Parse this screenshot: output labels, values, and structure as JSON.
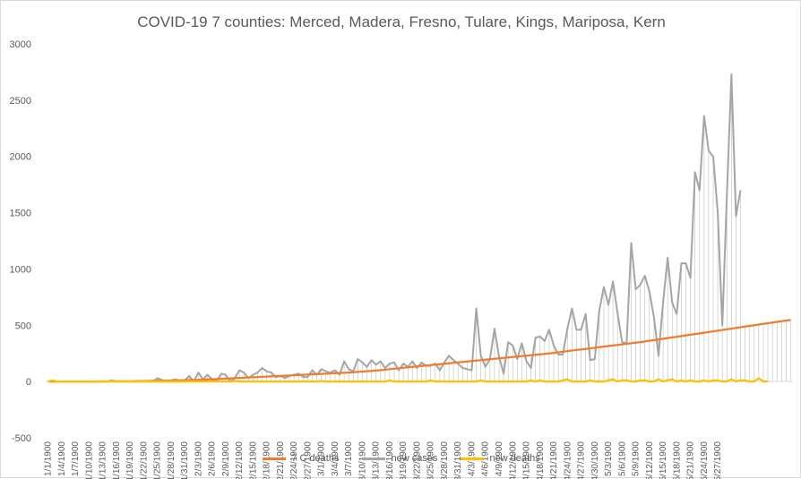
{
  "chart_data": {
    "type": "line",
    "title": "COVID-19 7 counties:  Merced,  Madera, Fresno, Tulare, Kings, Mariposa, Kern",
    "xlabel": "",
    "ylabel": "",
    "ylim": [
      -500,
      3000
    ],
    "yticks": [
      "3000",
      "2500",
      "2000",
      "1500",
      "1000",
      "500",
      "0",
      "-500"
    ],
    "x_tick_labels": [
      "1/1/1900",
      "1/4/1900",
      "1/7/1900",
      "1/10/1900",
      "1/13/1900",
      "1/16/1900",
      "1/19/1900",
      "1/22/1900",
      "1/25/1900",
      "1/28/1900",
      "1/31/1900",
      "2/3/1900",
      "2/6/1900",
      "2/9/1900",
      "2/12/1900",
      "2/15/1900",
      "2/18/1900",
      "2/21/1900",
      "2/24/1900",
      "2/27/1900",
      "3/1/1900",
      "3/4/1900",
      "3/7/1900",
      "3/10/1900",
      "3/13/1900",
      "3/16/1900",
      "3/19/1900",
      "3/22/1900",
      "3/25/1900",
      "3/28/1900",
      "3/31/1900",
      "4/3/1900",
      "4/6/1900",
      "4/9/1900",
      "4/12/1900",
      "4/15/1900",
      "4/18/1900",
      "4/21/1900",
      "4/24/1900",
      "4/27/1900",
      "4/30/1900",
      "5/3/1900",
      "5/6/1900",
      "5/9/1900",
      "5/12/1900",
      "5/15/1900",
      "5/18/1900",
      "5/21/1900",
      "5/24/1900",
      "5/27/1900"
    ],
    "grid": false,
    "drop_lines": true,
    "legend_position": "bottom",
    "series": [
      {
        "name": "7 C deaths",
        "color": "#ED7D31",
        "values": [
          0,
          0,
          0,
          0,
          0,
          0,
          0,
          0,
          0,
          0,
          0,
          1,
          1,
          1,
          2,
          2,
          2,
          2,
          2,
          3,
          4,
          4,
          5,
          6,
          7,
          8,
          8,
          9,
          10,
          11,
          12,
          13,
          14,
          15,
          17,
          19,
          20,
          22,
          24,
          26,
          28,
          30,
          32,
          34,
          37,
          38,
          40,
          42,
          44,
          46,
          48,
          50,
          52,
          54,
          56,
          58,
          60,
          62,
          64,
          66,
          68,
          70,
          72,
          74,
          76,
          78,
          80,
          83,
          86,
          89,
          92,
          95,
          98,
          102,
          106,
          110,
          114,
          118,
          122,
          126,
          130,
          134,
          138,
          142,
          146,
          150,
          154,
          158,
          162,
          166,
          170,
          174,
          178,
          182,
          186,
          190,
          194,
          198,
          202,
          206,
          210,
          214,
          218,
          222,
          226,
          230,
          234,
          238,
          242,
          246,
          250,
          255,
          260,
          265,
          270,
          275,
          280,
          285,
          290,
          295,
          300,
          305,
          310,
          315,
          320,
          325,
          330,
          335,
          340,
          345,
          350,
          356,
          362,
          368,
          374,
          380,
          386,
          392,
          398,
          404,
          410,
          416,
          422,
          428,
          434,
          440,
          446,
          452,
          458,
          464,
          470,
          476,
          482,
          488,
          494,
          500,
          506,
          512,
          518,
          524,
          530,
          536,
          542,
          548
        ]
      },
      {
        "name": "new cases",
        "color": "#A5A5A5",
        "values": [
          0,
          0,
          0,
          0,
          0,
          0,
          0,
          0,
          0,
          0,
          0,
          0,
          0,
          0,
          10,
          0,
          0,
          0,
          0,
          0,
          0,
          5,
          0,
          0,
          30,
          15,
          0,
          10,
          20,
          0,
          10,
          50,
          0,
          80,
          20,
          60,
          20,
          0,
          70,
          60,
          0,
          30,
          100,
          80,
          30,
          60,
          80,
          120,
          90,
          80,
          40,
          50,
          30,
          50,
          60,
          70,
          40,
          40,
          100,
          60,
          110,
          90,
          80,
          100,
          60,
          180,
          110,
          90,
          200,
          170,
          130,
          190,
          150,
          180,
          120,
          160,
          170,
          100,
          160,
          130,
          180,
          120,
          170,
          140,
          140,
          160,
          100,
          170,
          230,
          190,
          160,
          120,
          110,
          100,
          650,
          230,
          130,
          200,
          470,
          220,
          70,
          350,
          320,
          200,
          340,
          180,
          120,
          390,
          400,
          360,
          460,
          320,
          240,
          240,
          470,
          650,
          460,
          460,
          600,
          190,
          200,
          630,
          840,
          680,
          890,
          610,
          350,
          340,
          1230,
          820,
          860,
          940,
          800,
          570,
          230,
          700,
          1100,
          700,
          600,
          1050,
          1050,
          920,
          1860,
          1700,
          2360,
          2050,
          2000,
          1500,
          500,
          1650,
          2730,
          1470,
          1700
        ]
      },
      {
        "name": "new deaths",
        "color": "#FFC000",
        "values": [
          0,
          10,
          0,
          0,
          0,
          0,
          0,
          0,
          0,
          0,
          0,
          0,
          0,
          0,
          0,
          0,
          0,
          0,
          0,
          0,
          0,
          0,
          0,
          0,
          0,
          0,
          0,
          0,
          0,
          0,
          0,
          0,
          0,
          0,
          0,
          0,
          0,
          0,
          0,
          0,
          0,
          5,
          0,
          0,
          0,
          0,
          0,
          0,
          0,
          0,
          0,
          0,
          0,
          0,
          0,
          0,
          0,
          0,
          0,
          0,
          5,
          0,
          0,
          0,
          0,
          0,
          0,
          0,
          0,
          0,
          0,
          0,
          0,
          0,
          0,
          10,
          0,
          0,
          0,
          0,
          0,
          0,
          0,
          0,
          10,
          0,
          0,
          0,
          0,
          0,
          0,
          0,
          0,
          0,
          0,
          10,
          0,
          0,
          0,
          0,
          0,
          0,
          0,
          0,
          0,
          0,
          10,
          0,
          10,
          0,
          0,
          0,
          0,
          10,
          20,
          0,
          0,
          0,
          0,
          10,
          0,
          0,
          0,
          10,
          20,
          0,
          10,
          10,
          0,
          0,
          10,
          10,
          0,
          0,
          20,
          0,
          10,
          20,
          0,
          10,
          0,
          10,
          0,
          0,
          10,
          0,
          10,
          10,
          0,
          0,
          20,
          0,
          10,
          10,
          0,
          0,
          30,
          0,
          0
        ]
      }
    ]
  }
}
